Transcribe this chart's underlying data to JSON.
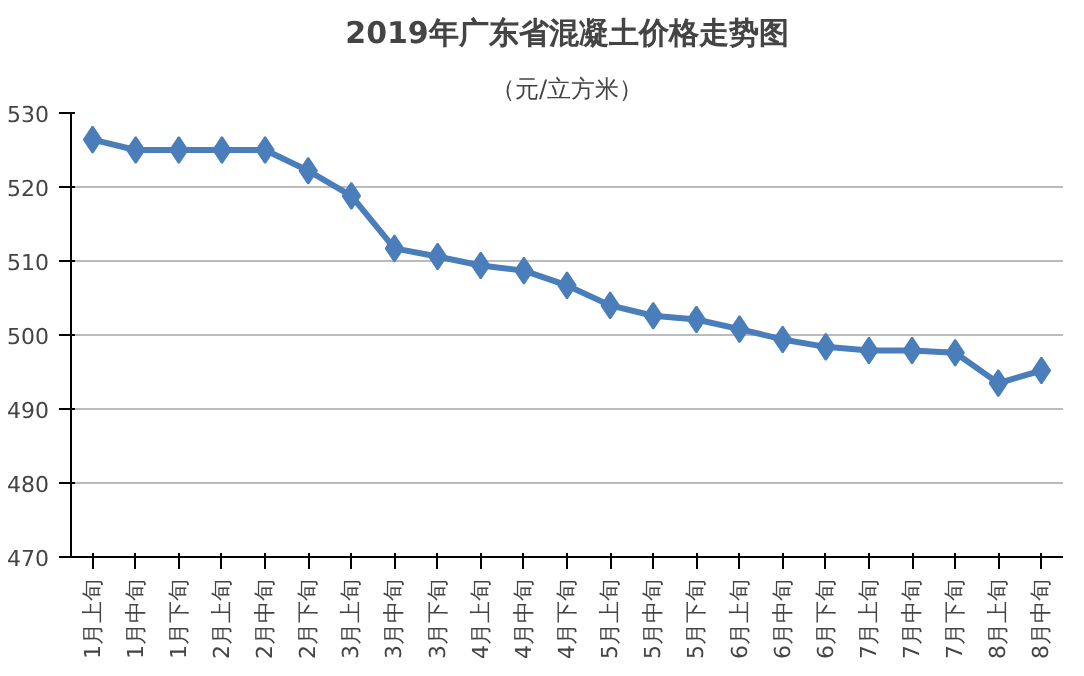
{
  "chart_data": {
    "type": "line",
    "title": "2019年广东省混凝土价格走势图",
    "subtitle": "（元/立方米）",
    "categories": [
      "1月上旬",
      "1月中旬",
      "1月下旬",
      "2月上旬",
      "2月中旬",
      "2月下旬",
      "3月上旬",
      "3月中旬",
      "3月下旬",
      "4月上旬",
      "4月中旬",
      "4月下旬",
      "5月上旬",
      "5月中旬",
      "5月下旬",
      "6月上旬",
      "6月中旬",
      "6月下旬",
      "7月上旬",
      "7月中旬",
      "7月下旬",
      "8月上旬",
      "8月中旬"
    ],
    "series": [
      {
        "color": "#4a7ebb",
        "values": [
          526.4,
          525,
          525,
          525,
          525,
          522.2,
          518.8,
          511.7,
          510.6,
          509.4,
          508.7,
          506.7,
          504.0,
          502.6,
          502.1,
          500.8,
          499.4,
          498.4,
          497.9,
          497.9,
          497.6,
          493.5,
          495.2
        ]
      }
    ],
    "ylim": [
      470,
      530
    ],
    "yticks": [
      470,
      480,
      490,
      500,
      510,
      520,
      530
    ],
    "grid": "y",
    "marker": "diamond",
    "line_style": "solid"
  }
}
